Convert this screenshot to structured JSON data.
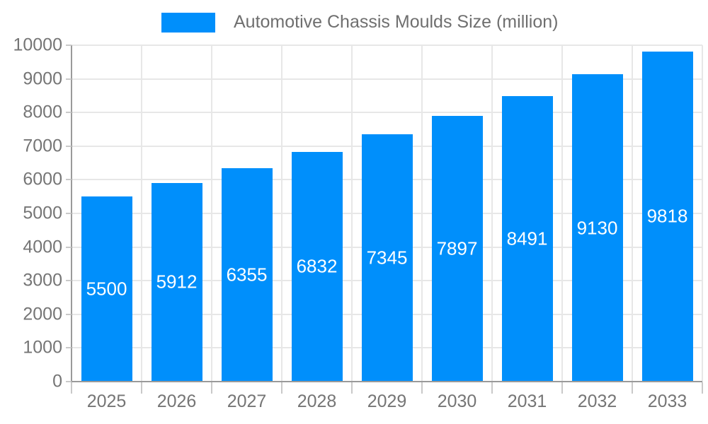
{
  "chart_data": {
    "type": "bar",
    "title": "Automotive Chassis Moulds Size (million)",
    "legend": [
      {
        "label": "Automotive Chassis Moulds Size (million)",
        "color": "#008FFB"
      }
    ],
    "categories": [
      "2025",
      "2026",
      "2027",
      "2028",
      "2029",
      "2030",
      "2031",
      "2032",
      "2033"
    ],
    "series": [
      {
        "name": "Automotive Chassis Moulds Size (million)",
        "values": [
          5500,
          5912,
          6355,
          6832,
          7345,
          7897,
          8491,
          9130,
          9818
        ]
      }
    ],
    "xlabel": "",
    "ylabel": "",
    "ylim": [
      0,
      10000
    ],
    "ytick_interval": 1000,
    "ytick_labels": [
      "0",
      "1000",
      "2000",
      "3000",
      "4000",
      "5000",
      "6000",
      "7000",
      "8000",
      "9000",
      "10000"
    ],
    "grid": "on",
    "legend_position": "top",
    "data_labels": "inside-center",
    "colors": {
      "bar": "#008FFB",
      "gridline": "#e7e7e7",
      "axis_line": "#9a9a9a",
      "tick": "#c9c9c9",
      "axis_text": "#757575",
      "legend_text": "#6f6f6f",
      "data_label_text": "#ffffff",
      "background": "#ffffff"
    }
  }
}
